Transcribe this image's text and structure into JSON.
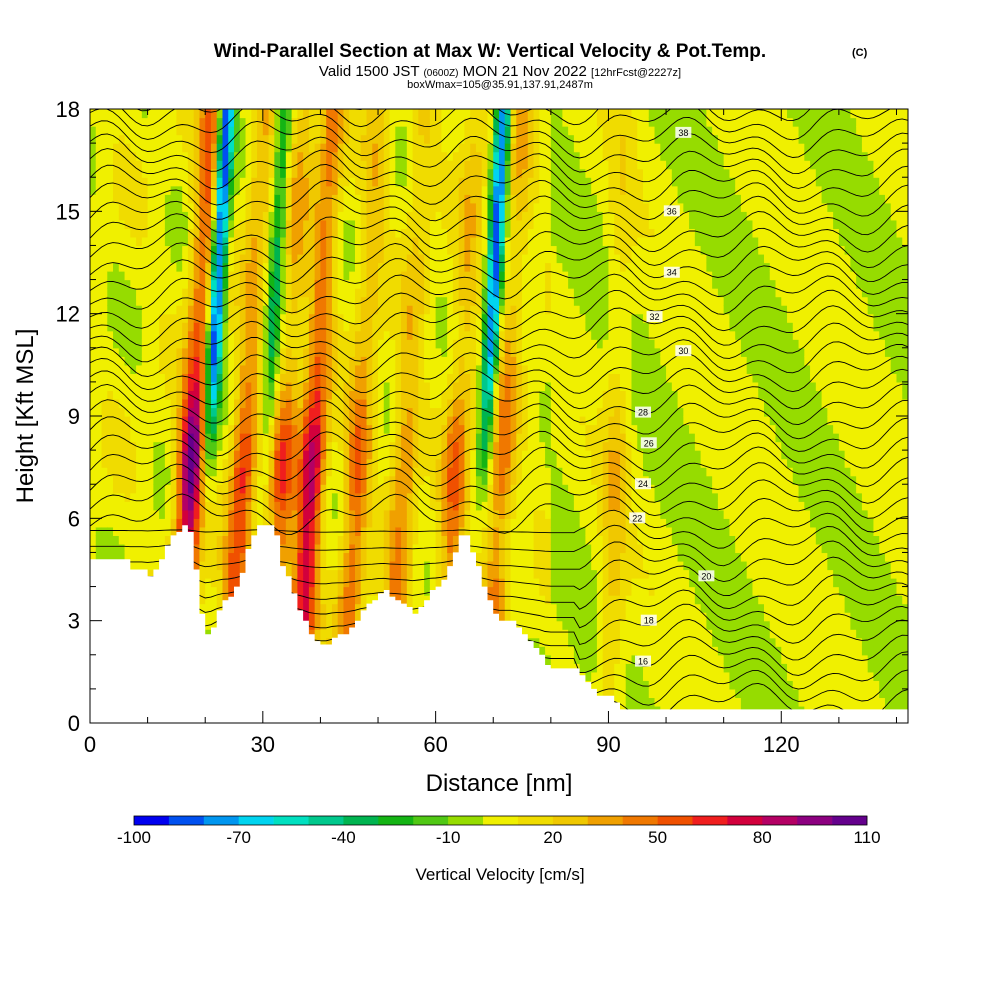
{
  "chart_data": {
    "type": "heatmap",
    "title": "Wind-Parallel Section at Max W: Vertical Velocity & Pot.Temp.",
    "title_mark": "(C)",
    "subtitle_valid": "Valid 1500 JST",
    "subtitle_utc": "(0600Z)",
    "subtitle_date": "MON 21 Nov 2022",
    "subtitle_fcst": "[12hrFcst@2227z]",
    "subtitle_box": "boxWmax=105@35.91,137.91,2487m",
    "xlabel": "Distance [nm]",
    "ylabel": "Height [Kft MSL]",
    "xlim": [
      0,
      142
    ],
    "ylim": [
      0,
      18
    ],
    "xticks": [
      "0",
      "30",
      "60",
      "90",
      "120"
    ],
    "yticks": [
      "0",
      "3",
      "6",
      "9",
      "12",
      "15",
      "18"
    ],
    "colorbar": {
      "label": "Vertical Velocity [cm/s]",
      "tick_labels": [
        "-100",
        "-70",
        "-40",
        "-10",
        "20",
        "50",
        "80",
        "110"
      ],
      "colors": [
        "#0000f0",
        "#0050f0",
        "#0096f0",
        "#00d4f0",
        "#00e0c0",
        "#00c88c",
        "#00b450",
        "#14b414",
        "#50c814",
        "#96dc00",
        "#f0f000",
        "#f0dc00",
        "#f0c800",
        "#f0a000",
        "#f07800",
        "#f05000",
        "#f01e1e",
        "#d2003c",
        "#b40064",
        "#8c0080",
        "#64008c"
      ],
      "range": [
        -100,
        110
      ]
    },
    "theta_contour_labels": [
      "16",
      "18",
      "20",
      "22",
      "24",
      "26",
      "28",
      "30",
      "32",
      "34",
      "36",
      "38"
    ],
    "updraft_bands": [
      {
        "x": 17,
        "top": 18,
        "peak": 105
      },
      {
        "x": 26,
        "top": 18,
        "peak": 60
      },
      {
        "x": 33,
        "top": 18,
        "peak": 50
      },
      {
        "x": 38,
        "top": 18,
        "peak": 85
      },
      {
        "x": 46,
        "top": 18,
        "peak": 50
      },
      {
        "x": 54,
        "top": 18,
        "peak": 40
      },
      {
        "x": 63,
        "top": 18,
        "peak": 45
      },
      {
        "x": 71,
        "top": 18,
        "peak": 45
      },
      {
        "x": 91,
        "top": 18,
        "peak": 25
      }
    ],
    "downdraft_bands": [
      {
        "x": 20,
        "top": 18,
        "peak": -100
      },
      {
        "x": 68,
        "top": 18,
        "peak": -90
      },
      {
        "x": 30,
        "top": 18,
        "peak": -40
      }
    ],
    "terrain": {
      "x": [
        0,
        6,
        7,
        9,
        10,
        11,
        12,
        13,
        14,
        15,
        16,
        17,
        18,
        19,
        20,
        21,
        22,
        23,
        24,
        25,
        26,
        27,
        28,
        29,
        30,
        31,
        32,
        33,
        34,
        35,
        36,
        37,
        38,
        39,
        40,
        41,
        42,
        43,
        44,
        45,
        46,
        47,
        48,
        49,
        50,
        51,
        52,
        53,
        54,
        55,
        56,
        57,
        58,
        59,
        60,
        61,
        62,
        63,
        64,
        65,
        66,
        67,
        68,
        69,
        70,
        71,
        72,
        73,
        74,
        75,
        76,
        77,
        78,
        79,
        80,
        81,
        82,
        83,
        84,
        85,
        86,
        87,
        88,
        89,
        90,
        91,
        92,
        93,
        94,
        95,
        96,
        142
      ],
      "z": [
        4.8,
        4.8,
        4.5,
        4.5,
        4.3,
        4.5,
        4.8,
        5.2,
        5.5,
        5.6,
        5.8,
        5.6,
        4.5,
        3.2,
        2.6,
        2.8,
        3.3,
        3.6,
        3.7,
        4.0,
        4.4,
        5.1,
        5.5,
        5.8,
        5.8,
        5.8,
        5.5,
        4.6,
        4.3,
        3.8,
        3.3,
        3.0,
        2.6,
        2.4,
        2.3,
        2.3,
        2.5,
        2.6,
        2.6,
        2.8,
        3.0,
        3.3,
        3.5,
        3.6,
        3.8,
        3.9,
        3.7,
        3.6,
        3.5,
        3.4,
        3.2,
        3.4,
        3.6,
        3.9,
        4.0,
        4.2,
        4.6,
        5.0,
        5.5,
        5.5,
        5.0,
        4.6,
        4.0,
        3.6,
        3.2,
        3.0,
        3.0,
        3.0,
        2.8,
        2.6,
        2.4,
        2.2,
        2.0,
        1.7,
        1.6,
        1.6,
        1.6,
        1.6,
        1.6,
        1.4,
        1.2,
        1.0,
        0.8,
        0.8,
        0.8,
        0.6,
        0.4,
        0.4,
        0.4,
        0.4,
        0.4,
        0.4
      ]
    }
  }
}
